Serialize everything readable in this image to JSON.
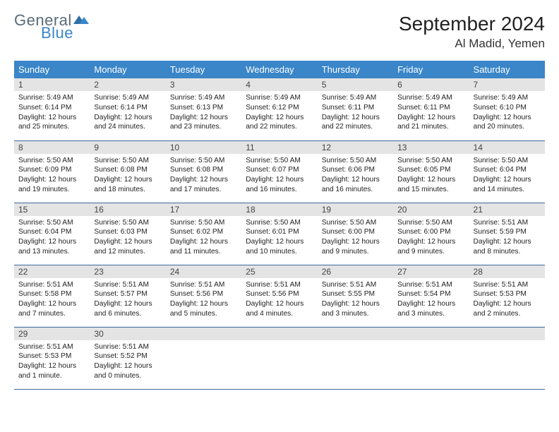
{
  "logo": {
    "word1": "General",
    "word2": "Blue",
    "gray": "#5a6b78",
    "blue": "#3a86c8"
  },
  "title": "September 2024",
  "location": "Al Madid, Yemen",
  "header_bg": "#3a86c8",
  "header_fg": "#ffffff",
  "row_border": "#3a6a9a",
  "daynum_bg": "#e4e4e4",
  "days": [
    "Sunday",
    "Monday",
    "Tuesday",
    "Wednesday",
    "Thursday",
    "Friday",
    "Saturday"
  ],
  "cells": [
    {
      "n": "1",
      "sr": "5:49 AM",
      "ss": "6:14 PM",
      "dl": "12 hours and 25 minutes."
    },
    {
      "n": "2",
      "sr": "5:49 AM",
      "ss": "6:14 PM",
      "dl": "12 hours and 24 minutes."
    },
    {
      "n": "3",
      "sr": "5:49 AM",
      "ss": "6:13 PM",
      "dl": "12 hours and 23 minutes."
    },
    {
      "n": "4",
      "sr": "5:49 AM",
      "ss": "6:12 PM",
      "dl": "12 hours and 22 minutes."
    },
    {
      "n": "5",
      "sr": "5:49 AM",
      "ss": "6:11 PM",
      "dl": "12 hours and 22 minutes."
    },
    {
      "n": "6",
      "sr": "5:49 AM",
      "ss": "6:11 PM",
      "dl": "12 hours and 21 minutes."
    },
    {
      "n": "7",
      "sr": "5:49 AM",
      "ss": "6:10 PM",
      "dl": "12 hours and 20 minutes."
    },
    {
      "n": "8",
      "sr": "5:50 AM",
      "ss": "6:09 PM",
      "dl": "12 hours and 19 minutes."
    },
    {
      "n": "9",
      "sr": "5:50 AM",
      "ss": "6:08 PM",
      "dl": "12 hours and 18 minutes."
    },
    {
      "n": "10",
      "sr": "5:50 AM",
      "ss": "6:08 PM",
      "dl": "12 hours and 17 minutes."
    },
    {
      "n": "11",
      "sr": "5:50 AM",
      "ss": "6:07 PM",
      "dl": "12 hours and 16 minutes."
    },
    {
      "n": "12",
      "sr": "5:50 AM",
      "ss": "6:06 PM",
      "dl": "12 hours and 16 minutes."
    },
    {
      "n": "13",
      "sr": "5:50 AM",
      "ss": "6:05 PM",
      "dl": "12 hours and 15 minutes."
    },
    {
      "n": "14",
      "sr": "5:50 AM",
      "ss": "6:04 PM",
      "dl": "12 hours and 14 minutes."
    },
    {
      "n": "15",
      "sr": "5:50 AM",
      "ss": "6:04 PM",
      "dl": "12 hours and 13 minutes."
    },
    {
      "n": "16",
      "sr": "5:50 AM",
      "ss": "6:03 PM",
      "dl": "12 hours and 12 minutes."
    },
    {
      "n": "17",
      "sr": "5:50 AM",
      "ss": "6:02 PM",
      "dl": "12 hours and 11 minutes."
    },
    {
      "n": "18",
      "sr": "5:50 AM",
      "ss": "6:01 PM",
      "dl": "12 hours and 10 minutes."
    },
    {
      "n": "19",
      "sr": "5:50 AM",
      "ss": "6:00 PM",
      "dl": "12 hours and 9 minutes."
    },
    {
      "n": "20",
      "sr": "5:50 AM",
      "ss": "6:00 PM",
      "dl": "12 hours and 9 minutes."
    },
    {
      "n": "21",
      "sr": "5:51 AM",
      "ss": "5:59 PM",
      "dl": "12 hours and 8 minutes."
    },
    {
      "n": "22",
      "sr": "5:51 AM",
      "ss": "5:58 PM",
      "dl": "12 hours and 7 minutes."
    },
    {
      "n": "23",
      "sr": "5:51 AM",
      "ss": "5:57 PM",
      "dl": "12 hours and 6 minutes."
    },
    {
      "n": "24",
      "sr": "5:51 AM",
      "ss": "5:56 PM",
      "dl": "12 hours and 5 minutes."
    },
    {
      "n": "25",
      "sr": "5:51 AM",
      "ss": "5:56 PM",
      "dl": "12 hours and 4 minutes."
    },
    {
      "n": "26",
      "sr": "5:51 AM",
      "ss": "5:55 PM",
      "dl": "12 hours and 3 minutes."
    },
    {
      "n": "27",
      "sr": "5:51 AM",
      "ss": "5:54 PM",
      "dl": "12 hours and 3 minutes."
    },
    {
      "n": "28",
      "sr": "5:51 AM",
      "ss": "5:53 PM",
      "dl": "12 hours and 2 minutes."
    },
    {
      "n": "29",
      "sr": "5:51 AM",
      "ss": "5:53 PM",
      "dl": "12 hours and 1 minute."
    },
    {
      "n": "30",
      "sr": "5:51 AM",
      "ss": "5:52 PM",
      "dl": "12 hours and 0 minutes."
    }
  ],
  "labels": {
    "sunrise": "Sunrise:",
    "sunset": "Sunset:",
    "daylight": "Daylight:"
  }
}
